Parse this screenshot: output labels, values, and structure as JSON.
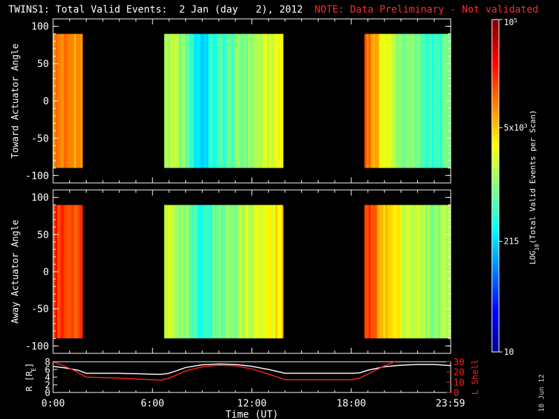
{
  "title": "TWINS1: Total Valid Events:  2 Jan (day   2), 2012",
  "note": "NOTE: Data Preliminary - Not validated",
  "date_stamp": "18 Jun 12",
  "colors": {
    "note": "#ff2a2a",
    "r_line": "#ffffff",
    "l_shell_line": "#ff2020",
    "background": "#000000"
  },
  "chart_data": [
    {
      "type": "heatmap",
      "panel": "toward",
      "ylabel": "Toward Actuator Angle",
      "ylim": [
        -110,
        110
      ],
      "yticks": [
        100,
        50,
        0,
        -50,
        -100
      ],
      "yticklabels": [
        "100",
        "50",
        "0",
        "-50",
        "-100"
      ],
      "xlim": [
        0,
        24
      ],
      "data_ylim": [
        -90,
        90
      ],
      "coverage_hours": [
        [
          0.0,
          1.8
        ],
        [
          6.7,
          13.9
        ],
        [
          18.8,
          23.98
        ]
      ],
      "colorscale": "log10 events per scan, 10 to 1e5",
      "mean_log10_profile": [
        [
          0.0,
          4.0
        ],
        [
          1.0,
          3.95
        ],
        [
          1.8,
          3.9
        ],
        [
          6.7,
          3.2
        ],
        [
          7.5,
          3.1
        ],
        [
          8.0,
          2.9
        ],
        [
          8.5,
          2.5
        ],
        [
          9.0,
          2.3
        ],
        [
          9.5,
          2.6
        ],
        [
          10.0,
          2.7
        ],
        [
          11.0,
          2.9
        ],
        [
          12.0,
          3.1
        ],
        [
          13.0,
          3.3
        ],
        [
          13.9,
          3.5
        ],
        [
          18.8,
          4.2
        ],
        [
          19.5,
          3.7
        ],
        [
          20.0,
          3.4
        ],
        [
          21.0,
          3.0
        ],
        [
          22.0,
          2.9
        ],
        [
          23.0,
          2.6
        ],
        [
          23.98,
          3.0
        ]
      ]
    },
    {
      "type": "heatmap",
      "panel": "away",
      "ylabel": "Away Actuator Angle",
      "ylim": [
        -110,
        110
      ],
      "yticks": [
        100,
        50,
        0,
        -50,
        -100
      ],
      "yticklabels": [
        "100",
        "50",
        "0",
        "-50",
        "-100"
      ],
      "xlim": [
        0,
        24
      ],
      "data_ylim": [
        -90,
        90
      ],
      "coverage_hours": [
        [
          0.0,
          1.8
        ],
        [
          6.7,
          13.9
        ],
        [
          18.8,
          23.98
        ]
      ],
      "colorscale": "log10 events per scan, 10 to 1e5",
      "mean_log10_profile": [
        [
          0.0,
          4.3
        ],
        [
          1.0,
          4.25
        ],
        [
          1.8,
          4.2
        ],
        [
          6.7,
          3.4
        ],
        [
          7.5,
          3.2
        ],
        [
          8.0,
          3.0
        ],
        [
          8.5,
          2.8
        ],
        [
          9.0,
          2.6
        ],
        [
          9.5,
          2.8
        ],
        [
          10.0,
          2.9
        ],
        [
          11.0,
          3.1
        ],
        [
          12.0,
          3.3
        ],
        [
          13.0,
          3.4
        ],
        [
          13.9,
          3.6
        ],
        [
          18.8,
          4.3
        ],
        [
          19.5,
          4.0
        ],
        [
          20.0,
          3.7
        ],
        [
          21.0,
          3.4
        ],
        [
          22.0,
          3.2
        ],
        [
          23.0,
          3.0
        ],
        [
          23.98,
          3.3
        ]
      ]
    },
    {
      "type": "line",
      "panel": "orbit",
      "xlabel": "Time (UT)",
      "xlim": [
        0,
        24
      ],
      "xticks": [
        0,
        6,
        12,
        18,
        23.98
      ],
      "xticklabels": [
        "0:00",
        "6:00",
        "12:00",
        "18:00",
        "23:59"
      ],
      "ylabel_left": "R [R",
      "ylabel_left_sub": "E",
      "ylabel_left_close": "]",
      "ylim_left": [
        0,
        8
      ],
      "yticks_left": [
        0,
        2,
        4,
        6,
        8
      ],
      "yticklabels_left": [
        "0",
        "2",
        "4",
        "6",
        "8"
      ],
      "ylabel_right": "L Shell",
      "ylim_right": [
        0,
        30
      ],
      "yticks_right": [
        0,
        10,
        20,
        30
      ],
      "yticklabels_right": [
        "0",
        "10",
        "20",
        "30"
      ],
      "series": [
        {
          "name": "R",
          "axis": "left",
          "x": [
            0,
            0.7,
            1.5,
            2,
            4,
            6.5,
            7,
            8,
            9,
            10,
            11,
            12,
            13,
            14,
            18,
            18.5,
            19,
            20,
            21,
            22,
            23,
            23.98
          ],
          "y": [
            6.8,
            6.4,
            5.8,
            5.0,
            5.0,
            4.7,
            5.0,
            6.5,
            7.2,
            7.4,
            7.3,
            6.8,
            6.0,
            5.0,
            5.0,
            5.1,
            5.8,
            6.7,
            7.1,
            7.3,
            7.3,
            7.0
          ]
        },
        {
          "name": "L Shell",
          "axis": "right",
          "x": [
            0,
            0.5,
            1.2,
            2,
            4,
            6.5,
            7,
            8,
            9,
            10,
            11,
            12,
            13,
            14,
            18,
            18.5,
            19,
            20,
            20.6
          ],
          "y": [
            30,
            27,
            22,
            15,
            14,
            12,
            14,
            21,
            25,
            26.5,
            26,
            23,
            18,
            12.5,
            12.5,
            14,
            18,
            26,
            30
          ]
        }
      ]
    }
  ],
  "colorbar": {
    "label_main": "LOG",
    "label_sub": "10",
    "label_rest": "(Total Valid Events per Scan)",
    "range_log10": [
      1,
      5
    ],
    "ticks": [
      {
        "value_log10": 5,
        "base": "10",
        "exp": "5"
      },
      {
        "value_log10": 3.699,
        "base": "5x10",
        "exp": "3"
      },
      {
        "value_log10": 2.332,
        "label": "215"
      },
      {
        "value_log10": 1,
        "label": "10"
      }
    ]
  }
}
